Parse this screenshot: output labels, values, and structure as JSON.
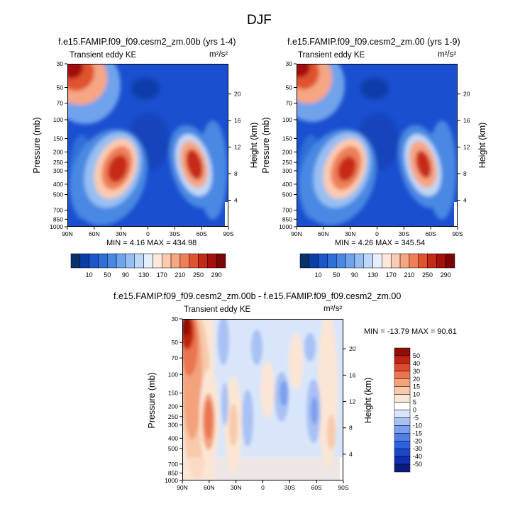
{
  "figure_title": "DJF",
  "panels": [
    {
      "title": "f.e15.FAMIP.f09_f09.cesm2_zm.00b (yrs 1-4)",
      "subtitle": "Transient eddy KE",
      "units": "m²/s²",
      "ylabel_left": "Pressure (mb)",
      "ylabel_right": "Height (km)",
      "minmax": "MIN =  4.16  MAX = 434.98"
    },
    {
      "title": "f.e15.FAMIP.f09_f09.cesm2_zm.00 (yrs 1-9)",
      "subtitle": "Transient eddy KE",
      "units": "m²/s²",
      "ylabel_left": "Pressure (mb)",
      "ylabel_right": "Height (km)",
      "minmax": "MIN =  4.26  MAX = 345.54"
    },
    {
      "title": "f.e15.FAMIP.f09_f09.cesm2_zm.00b - f.e15.FAMIP.f09_f09.cesm2_zm.00",
      "subtitle": "Transient eddy KE",
      "units": "m²/s²",
      "ylabel_left": "Pressure (mb)",
      "ylabel_right": "Height (km)",
      "minmax": "MIN = -13.79  MAX =  90.61"
    }
  ],
  "chart_data": [
    {
      "type": "heatmap",
      "title": "f.e15.FAMIP.f09_f09.cesm2_zm.00b (yrs 1-4)",
      "subtitle": "Transient eddy KE",
      "x_ticks": [
        "90N",
        "60N",
        "30N",
        "0",
        "30S",
        "60S",
        "90S"
      ],
      "y_ticks_pressure": [
        "30",
        "50",
        "70",
        "100",
        "150",
        "200",
        "250",
        "300",
        "400",
        "500",
        "700",
        "850",
        "1000"
      ],
      "y_ticks_height": [
        "20",
        "16",
        "12",
        "8",
        "4"
      ],
      "colorbar_labels": [
        "10",
        "50",
        "90",
        "130",
        "170",
        "210",
        "250",
        "290"
      ],
      "min": 4.16,
      "max": 434.98
    },
    {
      "type": "heatmap",
      "title": "f.e15.FAMIP.f09_f09.cesm2_zm.00 (yrs 1-9)",
      "subtitle": "Transient eddy KE",
      "x_ticks": [
        "90N",
        "60N",
        "30N",
        "0",
        "30S",
        "60S",
        "90S"
      ],
      "y_ticks_pressure": [
        "30",
        "50",
        "70",
        "100",
        "150",
        "200",
        "250",
        "300",
        "400",
        "500",
        "700",
        "850",
        "1000"
      ],
      "y_ticks_height": [
        "20",
        "16",
        "12",
        "8",
        "4"
      ],
      "colorbar_labels": [
        "10",
        "50",
        "90",
        "130",
        "170",
        "210",
        "250",
        "290"
      ],
      "min": 4.26,
      "max": 345.54
    },
    {
      "type": "heatmap",
      "title": "f.e15.FAMIP.f09_f09.cesm2_zm.00b - f.e15.FAMIP.f09_f09.cesm2_zm.00",
      "subtitle": "Transient eddy KE",
      "x_ticks": [
        "90N",
        "60N",
        "30N",
        "0",
        "30S",
        "60S",
        "90S"
      ],
      "y_ticks_pressure": [
        "30",
        "50",
        "70",
        "100",
        "150",
        "200",
        "250",
        "300",
        "400",
        "500",
        "700",
        "850",
        "1000"
      ],
      "y_ticks_height": [
        "20",
        "16",
        "12",
        "8",
        "4"
      ],
      "colorbar_labels": [
        "50",
        "40",
        "30",
        "20",
        "15",
        "10",
        "5",
        "0",
        "-5",
        "-10",
        "-15",
        "-20",
        "-30",
        "-40",
        "-50"
      ],
      "min": -13.79,
      "max": 90.61
    }
  ],
  "colors": {
    "kepal": [
      "#08306b",
      "#0b3ea8",
      "#1c57c9",
      "#2f6fd8",
      "#4a88e3",
      "#6fa3ec",
      "#97bff3",
      "#c0d8f8",
      "#e6f0fc",
      "#fde8dc",
      "#fbcab0",
      "#f6a683",
      "#ee7f57",
      "#e0532f",
      "#c62a16",
      "#a3110a",
      "#7a0505"
    ],
    "diffpal": [
      "#0c1a80",
      "#102fb0",
      "#1a47cc",
      "#2e62dc",
      "#4f80e6",
      "#7b9fee",
      "#a9c1f4",
      "#d9e6fa",
      "#fbe6d5",
      "#f8c9aa",
      "#f3a27c",
      "#ea7550",
      "#dc4a2c",
      "#c0230f",
      "#8f0d06"
    ]
  }
}
